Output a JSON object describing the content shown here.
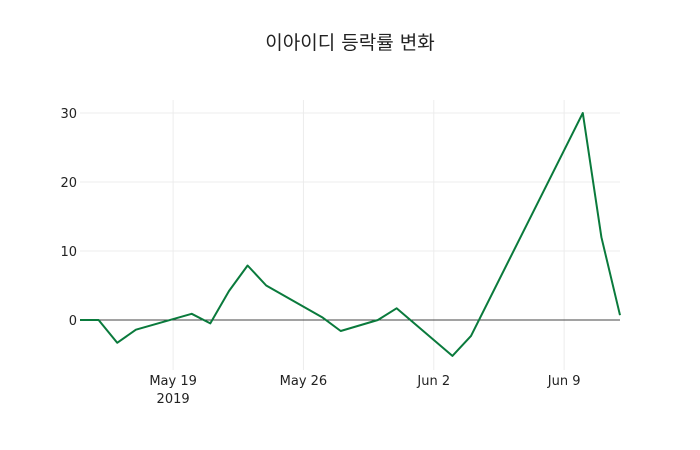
{
  "chart_data": {
    "type": "line",
    "title": "이아이디 등락률 변화",
    "xlabel": "",
    "ylabel": "",
    "x": [
      "2019-05-14",
      "2019-05-15",
      "2019-05-16",
      "2019-05-17",
      "2019-05-20",
      "2019-05-21",
      "2019-05-22",
      "2019-05-23",
      "2019-05-24",
      "2019-05-27",
      "2019-05-28",
      "2019-05-30",
      "2019-05-31",
      "2019-06-03",
      "2019-06-04",
      "2019-06-10",
      "2019-06-11",
      "2019-06-12"
    ],
    "series": [
      {
        "name": "등락률",
        "color": "#0a7a3c",
        "values": [
          0,
          0,
          -3.3,
          -1.4,
          0.9,
          -0.5,
          4.2,
          7.9,
          5.0,
          0.4,
          -1.6,
          0.0,
          1.7,
          -5.2,
          -2.3,
          30.0,
          12.0,
          0.7
        ]
      }
    ],
    "x_ticks": [
      {
        "date": "2019-05-19",
        "label": "May 19",
        "sublabel": "2019"
      },
      {
        "date": "2019-05-26",
        "label": "May 26",
        "sublabel": ""
      },
      {
        "date": "2019-06-02",
        "label": "Jun 2",
        "sublabel": ""
      },
      {
        "date": "2019-06-09",
        "label": "Jun 9",
        "sublabel": ""
      }
    ],
    "y_ticks": [
      0,
      10,
      20,
      30
    ],
    "ylim": [
      -7.5,
      31.5
    ],
    "grid": true,
    "legend": "none"
  }
}
